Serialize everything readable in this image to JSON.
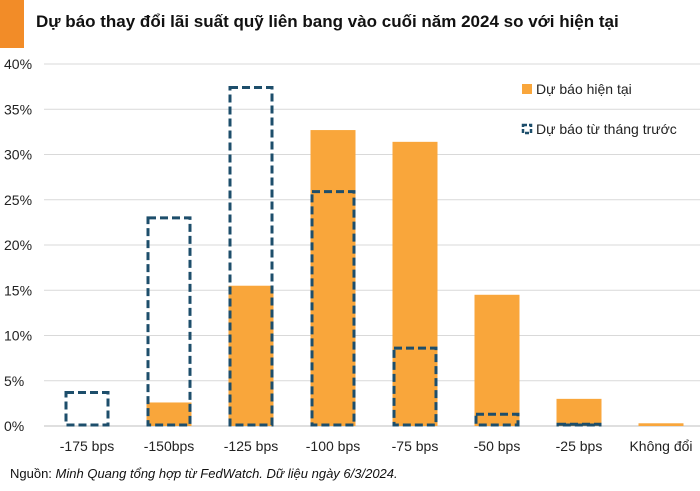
{
  "title": "Dự báo thay đổi lãi suất quỹ liên bang vào cuối năm 2024 so với hiện tại",
  "source": {
    "label": "Nguồn: ",
    "text": "Minh Quang tổng hợp từ FedWatch. Dữ liệu ngày 6/3/2024."
  },
  "colors": {
    "accent": "#f28c28",
    "current": "#f9a63b",
    "previous": "#1d4e6b",
    "grid": "#d9d9d9"
  },
  "chart_data": {
    "type": "bar",
    "categories": [
      "-175 bps",
      "-150bps",
      "-125 bps",
      "-100 bps",
      "-75 bps",
      "-50 bps",
      "-25 bps",
      "Không đổi"
    ],
    "series": [
      {
        "name": "Dự báo hiện tại",
        "style": "filled",
        "values": [
          0,
          2.6,
          15.5,
          32.7,
          31.4,
          14.5,
          3.0,
          0.3
        ]
      },
      {
        "name": "Dự báo từ tháng trước",
        "style": "dashed-outline",
        "values": [
          3.7,
          23.0,
          37.4,
          25.9,
          8.6,
          1.3,
          0.2,
          0
        ]
      }
    ],
    "yticks": [
      "0%",
      "5%",
      "10%",
      "15%",
      "20%",
      "25%",
      "30%",
      "35%",
      "40%"
    ],
    "ylim": [
      0,
      40
    ],
    "grid": true,
    "legend_position": "top-right"
  }
}
